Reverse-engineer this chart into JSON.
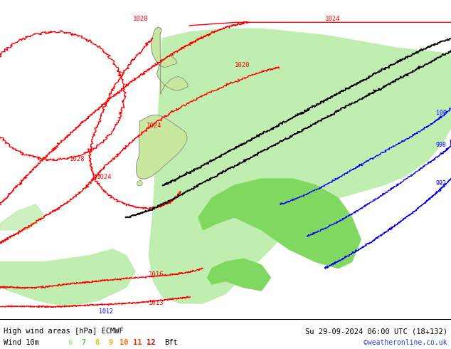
{
  "title_left": "High wind areas [hPa] ECMWF",
  "title_right": "Su 29-09-2024 06:00 UTC (18+132)",
  "subtitle_left": "Wind 10m",
  "subtitle_right": "©weatheronline.co.uk",
  "wind_nums": [
    "6",
    "7",
    "8",
    "9",
    "10",
    "11",
    "12",
    "Bft"
  ],
  "wind_colors": [
    "#99ee88",
    "#55cc44",
    "#cccc00",
    "#ffaa00",
    "#ff6600",
    "#ff3300",
    "#cc0000",
    "#000000"
  ],
  "bg_color": "#e0e0e0",
  "fig_width": 6.34,
  "fig_height": 4.9,
  "dpi": 100,
  "light_green": "#c0edb0",
  "mid_green": "#80d860",
  "dark_green": "#50b830",
  "nz_fill": "#c8e8a0",
  "nz_border": "#888888"
}
